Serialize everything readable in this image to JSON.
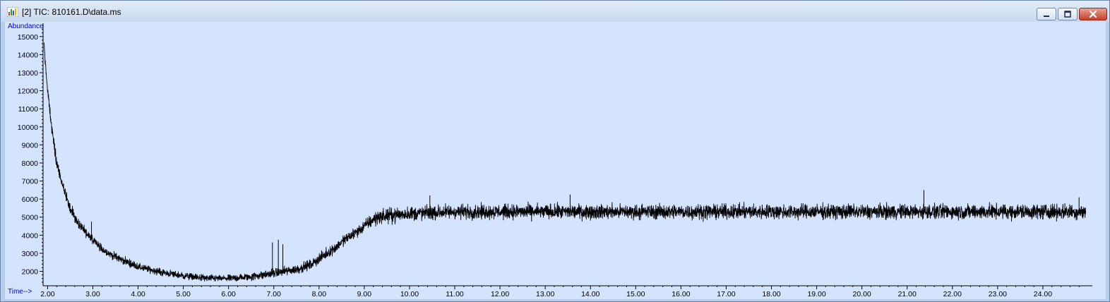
{
  "window": {
    "title": "[2] TIC: 810161.D\\data.ms",
    "icon": "chromatogram-icon",
    "controls": [
      "minimize-icon",
      "maximize-icon",
      "close-icon"
    ]
  },
  "colors": {
    "plot_background": "#d4e4ff",
    "trace": "#000000",
    "axis_title": "#0000c8",
    "close_button": "#c53f2a"
  },
  "chart_data": {
    "type": "line",
    "title": "",
    "ylabel": "Abundance",
    "xlabel": "Time-->",
    "xlim": [
      1.9,
      25.0
    ],
    "ylim": [
      1200,
      15500
    ],
    "x_ticks": [
      2,
      3,
      4,
      5,
      6,
      7,
      8,
      9,
      10,
      11,
      12,
      13,
      14,
      15,
      16,
      17,
      18,
      19,
      20,
      21,
      22,
      23,
      24
    ],
    "x_tick_labels": [
      "2.00",
      "3.00",
      "4.00",
      "5.00",
      "6.00",
      "7.00",
      "8.00",
      "9.00",
      "10.00",
      "11.00",
      "12.00",
      "13.00",
      "14.00",
      "15.00",
      "16.00",
      "17.00",
      "18.00",
      "19.00",
      "20.00",
      "21.00",
      "22.00",
      "23.00",
      "24.00"
    ],
    "y_ticks": [
      2000,
      3000,
      4000,
      5000,
      6000,
      7000,
      8000,
      9000,
      10000,
      11000,
      12000,
      13000,
      14000,
      15000
    ],
    "y_tick_labels": [
      "2000",
      "3000",
      "4000",
      "5000",
      "6000",
      "7000",
      "8000",
      "9000",
      "10000",
      "11000",
      "12000",
      "13000",
      "14000",
      "15000"
    ],
    "grid": false,
    "legend": "none",
    "series": [
      {
        "baseline": {
          "x": [
            1.92,
            2.0,
            2.1,
            2.2,
            2.3,
            2.4,
            2.5,
            2.6,
            2.7,
            2.85,
            3.0,
            3.25,
            3.5,
            4.0,
            4.5,
            5.0,
            5.5,
            6.0,
            6.5,
            7.0,
            7.5,
            7.8,
            8.0,
            8.3,
            8.6,
            8.9,
            9.1,
            9.3,
            9.6,
            10.0,
            10.5,
            11.0,
            12.0,
            13.0,
            14.0,
            15.0,
            16.0,
            17.0,
            18.0,
            19.0,
            20.0,
            21.0,
            22.0,
            23.0,
            24.0,
            24.95
          ],
          "y": [
            14600,
            12000,
            9800,
            8000,
            7000,
            6200,
            5500,
            5000,
            4600,
            4150,
            3700,
            3150,
            2800,
            2250,
            1950,
            1750,
            1620,
            1600,
            1700,
            1900,
            2100,
            2350,
            2700,
            3200,
            3800,
            4300,
            4700,
            5000,
            5100,
            5200,
            5250,
            5300,
            5300,
            5300,
            5300,
            5300,
            5300,
            5300,
            5300,
            5300,
            5300,
            5300,
            5300,
            5300,
            5300,
            5300
          ]
        },
        "noise": {
          "x": [
            1.92,
            3.0,
            4.0,
            6.0,
            7.0,
            8.0,
            9.0,
            9.3,
            24.95
          ],
          "y": [
            260,
            200,
            160,
            150,
            200,
            220,
            260,
            320,
            330
          ]
        },
        "spikes": [
          {
            "x": 2.97,
            "y": 4750
          },
          {
            "x": 6.97,
            "y": 3600
          },
          {
            "x": 7.1,
            "y": 3750
          },
          {
            "x": 7.2,
            "y": 3500
          },
          {
            "x": 10.45,
            "y": 6200
          },
          {
            "x": 13.55,
            "y": 6250
          },
          {
            "x": 21.37,
            "y": 6500
          },
          {
            "x": 24.8,
            "y": 6100
          }
        ]
      }
    ]
  }
}
